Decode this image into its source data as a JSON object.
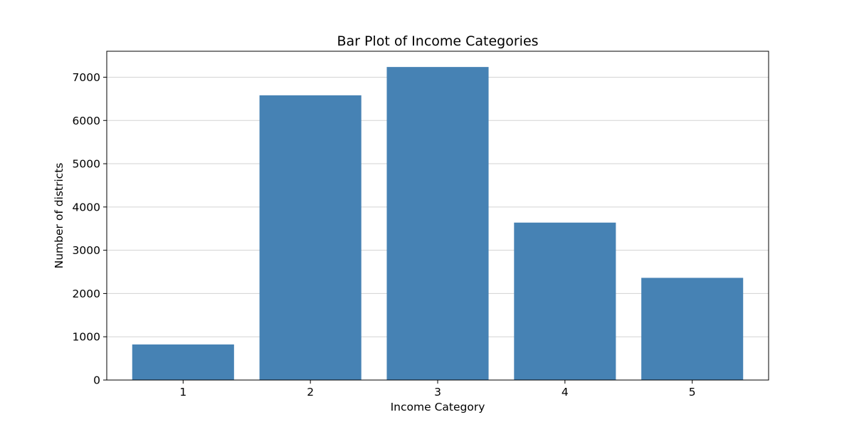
{
  "chart_data": {
    "type": "bar",
    "title": "Bar Plot of Income Categories",
    "xlabel": "Income Category",
    "ylabel": "Number of districts",
    "categories": [
      "1",
      "2",
      "3",
      "4",
      "5"
    ],
    "values": [
      822,
      6581,
      7236,
      3639,
      2362
    ],
    "ylim": [
      0,
      7600
    ],
    "yticks": [
      0,
      1000,
      2000,
      3000,
      4000,
      5000,
      6000,
      7000
    ],
    "grid": "y",
    "bar_color": "#4682b4"
  }
}
